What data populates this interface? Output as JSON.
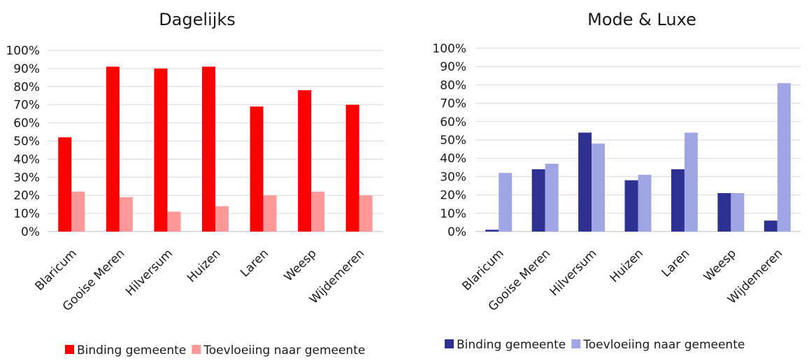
{
  "chart_data": [
    {
      "type": "bar",
      "title": "Dagelijks",
      "categories": [
        "Blaricum",
        "Gooise Meren",
        "Hilversum",
        "Huizen",
        "Laren",
        "Weesp",
        "Wijdemeren"
      ],
      "series": [
        {
          "name": "Binding gemeente",
          "values": [
            52,
            91,
            90,
            91,
            69,
            78,
            70
          ],
          "color": "#ff0000"
        },
        {
          "name": "Toevloeiing naar gemeente",
          "values": [
            22,
            19,
            11,
            14,
            20,
            22,
            20
          ],
          "color": "#ff9999"
        }
      ],
      "ylim": [
        0,
        100
      ],
      "yticks": [
        "0%",
        "10%",
        "20%",
        "30%",
        "40%",
        "50%",
        "60%",
        "70%",
        "80%",
        "90%",
        "100%"
      ],
      "grid": true,
      "legend": "bottom"
    },
    {
      "type": "bar",
      "title": "Mode & Luxe",
      "categories": [
        "Blaricum",
        "Gooise Meren",
        "Hilversum",
        "Huizen",
        "Laren",
        "Weesp",
        "Wijdemeren"
      ],
      "series": [
        {
          "name": "Binding gemeente",
          "values": [
            1,
            34,
            54,
            28,
            34,
            21,
            6
          ],
          "color": "#2e3192"
        },
        {
          "name": "Toevloeiing naar gemeente",
          "values": [
            32,
            37,
            48,
            31,
            54,
            21,
            81
          ],
          "color": "#a0a6e3"
        }
      ],
      "ylim": [
        0,
        100
      ],
      "yticks": [
        "0%",
        "10%",
        "20%",
        "30%",
        "40%",
        "50%",
        "60%",
        "70%",
        "80%",
        "90%",
        "100%"
      ],
      "grid": true,
      "legend": "bottom"
    }
  ]
}
